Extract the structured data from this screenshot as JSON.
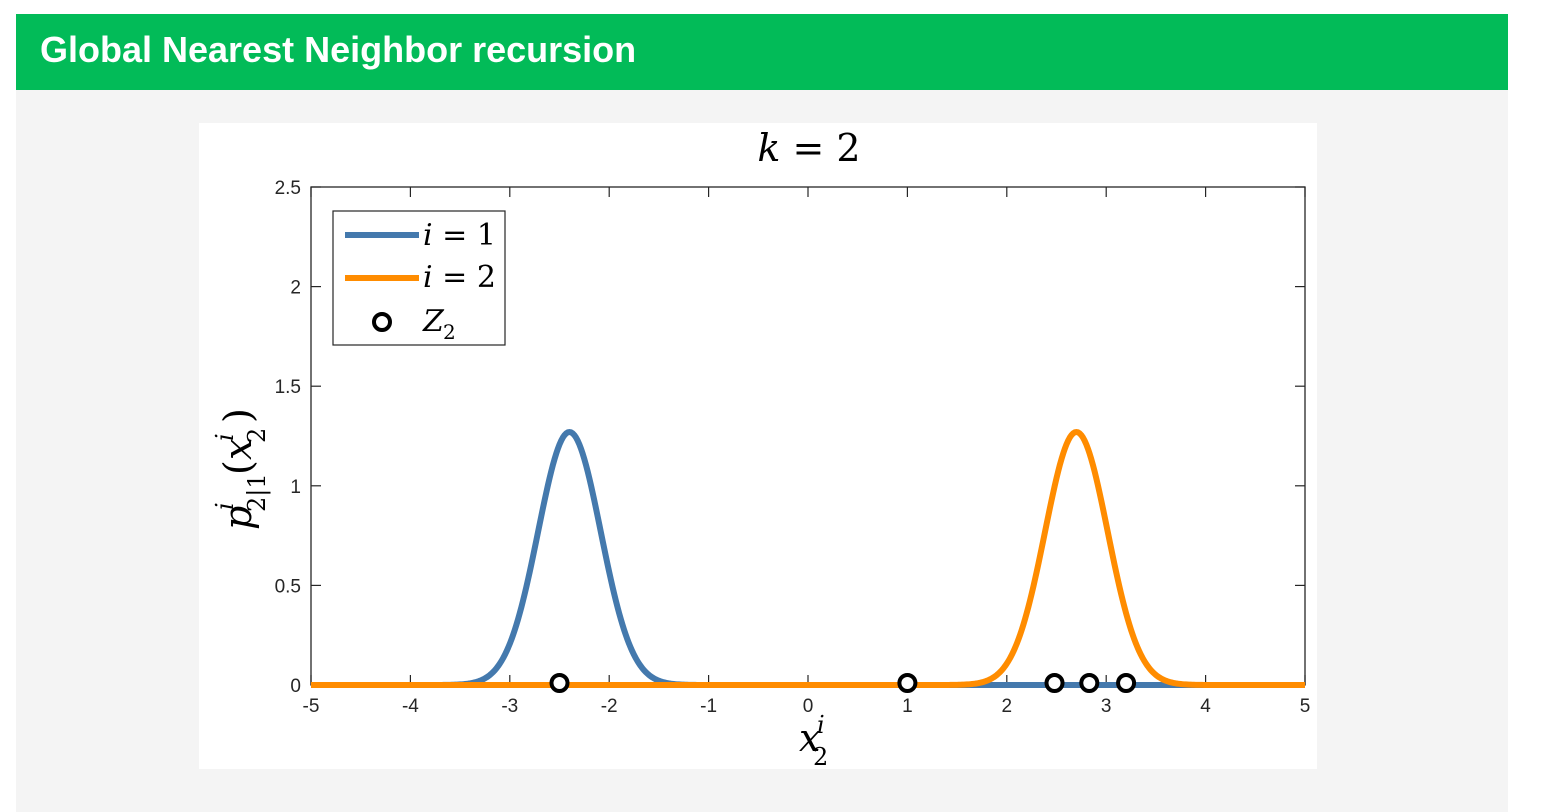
{
  "header": {
    "title": "Global Nearest Neighbor recursion"
  },
  "colors": {
    "header_bg": "#02bb58",
    "series1": "#4479ad",
    "series2": "#ff8c00"
  },
  "chart_data": {
    "type": "line",
    "title": "k = 2",
    "xlabel": "x₂ⁱ",
    "ylabel": "pⁱ₂|₁(x₂ⁱ)",
    "xlim": [
      -5,
      5
    ],
    "ylim": [
      0,
      2.5
    ],
    "x_ticks": [
      -5,
      -4,
      -3,
      -2,
      -1,
      0,
      1,
      2,
      3,
      4,
      5
    ],
    "y_ticks": [
      0,
      0.5,
      1,
      1.5,
      2,
      2.5
    ],
    "x_tick_labels": [
      "-5",
      "-4",
      "-3",
      "-2",
      "-1",
      "0",
      "1",
      "2",
      "3",
      "4",
      "5"
    ],
    "y_tick_labels": [
      "0",
      "0.5",
      "1",
      "1.5",
      "2",
      "2.5"
    ],
    "legend_position": "top-left",
    "series": [
      {
        "name": "i = 1",
        "kind": "gaussian",
        "mean": -2.4,
        "std": 0.315,
        "peak": 1.27,
        "color": "#4479ad"
      },
      {
        "name": "i = 2",
        "kind": "gaussian",
        "mean": 2.7,
        "std": 0.315,
        "peak": 1.27,
        "color": "#ff8c00"
      }
    ],
    "markers": {
      "name": "Z₂",
      "x": [
        -2.5,
        1.0,
        2.48,
        2.83,
        3.2
      ],
      "y": [
        0,
        0,
        0,
        0,
        0
      ]
    }
  }
}
